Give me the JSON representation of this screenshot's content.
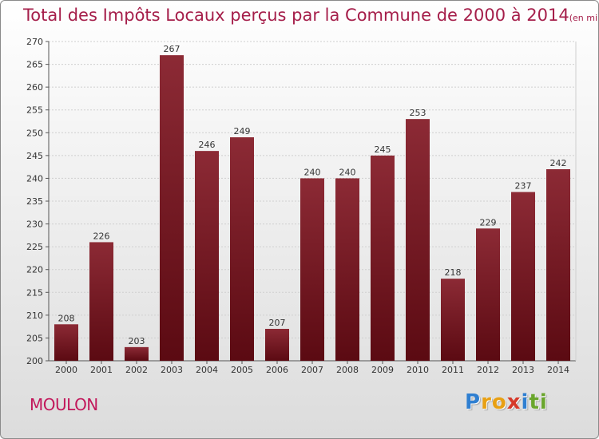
{
  "title": {
    "main": "Total des Impôts Locaux perçus par la Commune de 2000 à 2014",
    "unit": "(en milliers d'€)"
  },
  "commune": "MOULON",
  "logo": {
    "letters": [
      "P",
      "r",
      "o",
      "x",
      "i",
      "t",
      "i"
    ],
    "colors": [
      "#2f7fd1",
      "#e8a013",
      "#e8a013",
      "#d63a2a",
      "#2f7fd1",
      "#6aa62d",
      "#6aa62d"
    ]
  },
  "colors": {
    "bar_top": "#8c2a35",
    "bar_bottom": "#5b0a12",
    "axis": "#555555",
    "grid": "#cfcfcf",
    "text": "#333333"
  },
  "chart_data": {
    "type": "bar",
    "title": "Total des Impôts Locaux perçus par la Commune de 2000 à 2014",
    "xlabel": "",
    "ylabel": "",
    "categories": [
      "2000",
      "2001",
      "2002",
      "2003",
      "2004",
      "2005",
      "2006",
      "2007",
      "2008",
      "2009",
      "2010",
      "2011",
      "2012",
      "2013",
      "2014"
    ],
    "values": [
      208,
      226,
      203,
      267,
      246,
      249,
      207,
      240,
      240,
      245,
      253,
      218,
      229,
      237,
      242
    ],
    "ylim": [
      200,
      270
    ],
    "yticks": [
      200,
      205,
      210,
      215,
      220,
      225,
      230,
      235,
      240,
      245,
      250,
      255,
      260,
      265,
      270
    ],
    "grid": true
  }
}
